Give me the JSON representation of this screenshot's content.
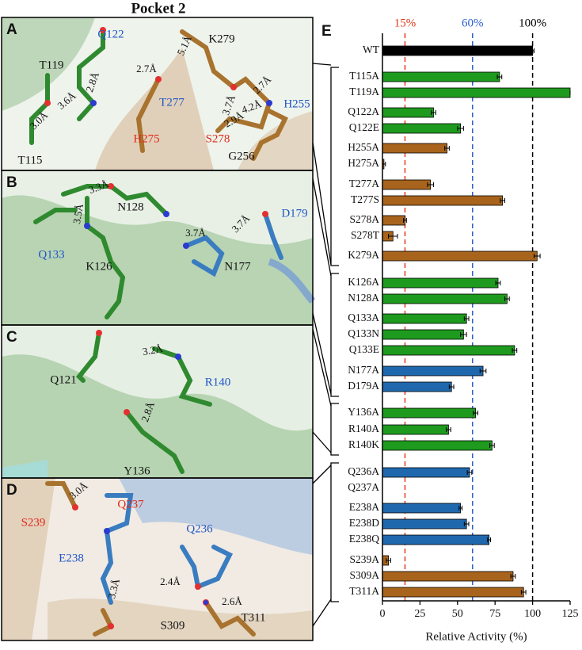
{
  "figure": {
    "title": "Pocket 2",
    "panels": [
      {
        "letter": "A",
        "labels": [
          "Q122",
          "5.1Å",
          "K279",
          "T119",
          "2.7Å",
          "2.8Å",
          "2.7Å",
          "H255",
          "T277",
          "3.6Å",
          "3.7Å",
          "4.2Å",
          "3.0Å",
          "H275",
          "S278",
          "2.9Å",
          "G256",
          "T115"
        ]
      },
      {
        "letter": "B",
        "labels": [
          "3.3Å",
          "N128",
          "3.5Å",
          "3.7Å",
          "3.7Å",
          "D179",
          "Q133",
          "K126",
          "N177"
        ]
      },
      {
        "letter": "C",
        "labels": [
          "3.2Å",
          "Q121",
          "R140",
          "2.8Å",
          "Y136"
        ]
      },
      {
        "letter": "D",
        "labels": [
          "3.0Å",
          "Q237",
          "S239",
          "Q236",
          "E238",
          "2.4Å",
          "3.3Å",
          "2.6Å",
          "T311",
          "S309"
        ]
      }
    ]
  },
  "chart_data": {
    "type": "bar",
    "orientation": "horizontal",
    "panel_label": "E",
    "x_label": "Relative Activity (%)",
    "categories": [
      "WT",
      "T115A",
      "T119A",
      "Q122A",
      "Q122E",
      "H255A",
      "H275A",
      "T277A",
      "T277S",
      "S278A",
      "S278T",
      "K279A",
      "K126A",
      "N128A",
      "Q133A",
      "Q133N",
      "Q133E",
      "N177A",
      "D179A",
      "Y136A",
      "R140A",
      "R140K",
      "Q236A",
      "Q237A",
      "E238A",
      "E238D",
      "E238Q",
      "S239A",
      "S309A",
      "T311A"
    ],
    "series": [
      {
        "values": [
          100,
          78,
          125,
          34,
          52,
          43,
          1,
          32,
          80,
          15,
          7,
          103,
          77,
          83,
          56,
          54,
          88,
          67,
          46,
          62,
          44,
          73,
          58,
          0,
          52,
          56,
          71,
          4,
          87,
          94
        ],
        "errors": [
          1,
          1.5,
          0,
          1.5,
          2,
          1.5,
          1,
          2,
          1.5,
          1,
          3,
          2,
          1.5,
          1.5,
          1.5,
          2,
          1.5,
          2,
          1.5,
          1.5,
          1.5,
          1.5,
          1.5,
          null,
          1,
          1.5,
          1,
          1.5,
          1.5,
          1.5
        ],
        "colors": [
          "#000000",
          "#1e9a1e",
          "#1e9a1e",
          "#1e9a1e",
          "#1e9a1e",
          "#a8641c",
          "#a8641c",
          "#a8641c",
          "#a8641c",
          "#a8641c",
          "#a8641c",
          "#a8641c",
          "#1e9a1e",
          "#1e9a1e",
          "#1e9a1e",
          "#1e9a1e",
          "#1e9a1e",
          "#1f68ad",
          "#1f68ad",
          "#1e9a1e",
          "#1e9a1e",
          "#1e9a1e",
          "#1f68ad",
          "#1f68ad",
          "#1f68ad",
          "#1f68ad",
          "#1f68ad",
          "#a8641c",
          "#a8641c",
          "#a8641c"
        ]
      }
    ],
    "xlim": [
      0,
      125
    ],
    "xticks": [
      0,
      25,
      50,
      75,
      100,
      125
    ],
    "reference_lines": [
      {
        "value": 15,
        "label": "15%",
        "color": "#e03a1c"
      },
      {
        "value": 60,
        "label": "60%",
        "color": "#2a5fd0"
      },
      {
        "value": 100,
        "label": "100%",
        "color": "#000000"
      }
    ]
  }
}
